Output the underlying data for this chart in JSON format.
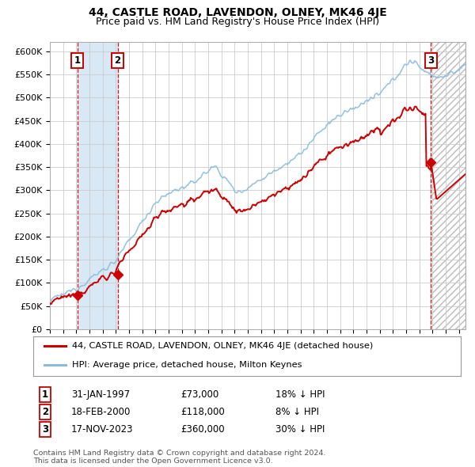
{
  "title": "44, CASTLE ROAD, LAVENDON, OLNEY, MK46 4JE",
  "subtitle": "Price paid vs. HM Land Registry's House Price Index (HPI)",
  "title_fontsize": 10,
  "subtitle_fontsize": 9,
  "background_color": "#ffffff",
  "plot_bg_color": "#ffffff",
  "grid_color": "#cccccc",
  "ylim": [
    0,
    620000
  ],
  "yticks": [
    0,
    50000,
    100000,
    150000,
    200000,
    250000,
    300000,
    350000,
    400000,
    450000,
    500000,
    550000,
    600000
  ],
  "ytick_labels": [
    "£0",
    "£50K",
    "£100K",
    "£150K",
    "£200K",
    "£250K",
    "£300K",
    "£350K",
    "£400K",
    "£450K",
    "£500K",
    "£550K",
    "£600K"
  ],
  "xmin": 1995.0,
  "xmax": 2026.5,
  "sale_dates": [
    1997.08,
    2000.13,
    2023.88
  ],
  "sale_prices": [
    73000,
    118000,
    360000
  ],
  "sale_labels": [
    "1",
    "2",
    "3"
  ],
  "legend_line1": "44, CASTLE ROAD, LAVENDON, OLNEY, MK46 4JE (detached house)",
  "legend_line2": "HPI: Average price, detached house, Milton Keynes",
  "legend_color1": "#cc0000",
  "legend_color2": "#88bbdd",
  "table_entries": [
    {
      "label": "1",
      "date": "31-JAN-1997",
      "price": "£73,000",
      "hpi": "18% ↓ HPI"
    },
    {
      "label": "2",
      "date": "18-FEB-2000",
      "price": "£118,000",
      "hpi": "8% ↓ HPI"
    },
    {
      "label": "3",
      "date": "17-NOV-2023",
      "price": "£360,000",
      "hpi": "30% ↓ HPI"
    }
  ],
  "footer": "Contains HM Land Registry data © Crown copyright and database right 2024.\nThis data is licensed under the Open Government Licence v3.0.",
  "shaded_region_color": "#d8e8f5",
  "hatch_color": "#e0e0e0"
}
